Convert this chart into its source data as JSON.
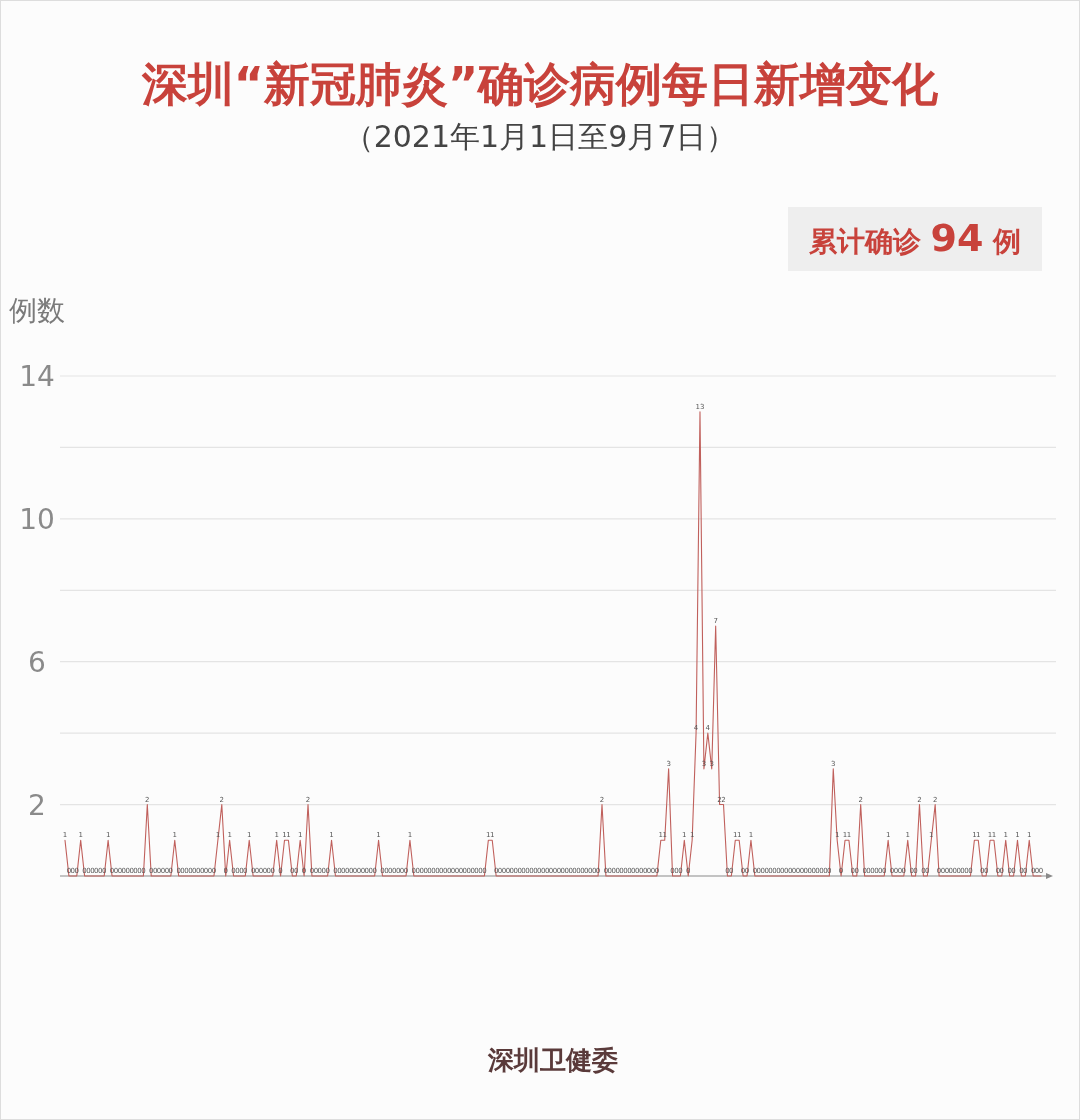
{
  "chart_data": {
    "type": "line",
    "title": "深圳“新冠肺炎”确诊病例每日新增变化",
    "subtitle": "（2021年1月1日至9月7日）",
    "ylabel": "例数",
    "annotations": [
      "累计确诊 **94** 例",
      "深圳卫健委"
    ],
    "color": "#c0605c",
    "ylim": [
      0,
      14
    ],
    "yticks": [
      2,
      {
        "value": 4,
        "label": null
      },
      6,
      {
        "value": 8,
        "label": null
      },
      10,
      {
        "value": 12,
        "label": null
      },
      14
    ],
    "grid": "y",
    "data_labels": true,
    "categories": [
      null,
      null,
      null,
      null,
      null,
      null,
      null,
      null,
      null,
      null,
      null,
      null,
      null,
      null,
      null,
      null,
      null,
      null,
      null,
      null,
      null,
      null,
      null,
      null,
      null,
      null,
      null,
      null,
      null,
      null,
      null,
      null,
      null,
      null,
      null,
      null,
      null,
      null,
      null,
      null,
      null,
      null,
      null,
      null,
      null,
      null,
      null,
      null,
      null,
      null,
      null,
      null,
      null,
      null,
      null,
      null,
      null,
      null,
      null,
      null,
      null,
      null,
      null,
      null,
      null,
      null,
      null,
      null,
      null,
      null,
      null,
      null,
      null,
      null,
      null,
      null,
      null,
      null,
      null,
      null,
      null,
      null,
      null,
      null,
      null,
      null,
      null,
      null,
      null,
      null,
      null,
      null,
      null,
      null,
      null,
      null,
      null,
      null,
      null,
      null,
      null,
      null,
      null,
      null,
      null,
      null,
      null,
      null,
      null,
      null,
      null,
      null,
      null,
      null,
      null,
      null,
      null,
      null,
      null,
      null,
      null,
      null,
      null,
      null,
      null,
      null,
      null,
      null,
      null,
      null,
      null,
      null,
      null,
      null,
      null,
      null,
      null,
      null,
      null,
      null,
      null,
      null,
      null,
      null,
      null,
      null,
      null,
      null,
      null,
      null,
      null,
      null,
      null,
      null,
      null,
      null,
      null,
      null,
      null,
      null,
      null,
      null,
      null,
      null,
      null,
      null,
      null,
      null,
      null,
      null,
      null,
      null,
      null,
      null,
      null,
      null,
      null,
      null,
      null,
      null,
      null,
      null,
      null,
      null,
      null,
      null,
      null,
      null,
      null,
      null,
      null,
      null,
      null,
      null,
      null,
      null,
      null,
      null,
      null,
      null,
      null,
      null,
      null,
      null,
      null,
      null,
      null,
      null,
      null,
      null,
      null,
      null,
      null,
      null,
      null,
      null,
      null,
      null,
      null,
      null,
      null,
      null,
      null,
      null,
      null,
      null,
      null,
      null,
      null,
      null,
      null,
      null,
      null,
      null,
      null,
      null,
      null,
      null,
      null,
      null,
      null,
      null,
      null,
      null,
      null,
      null,
      null,
      null,
      null,
      null
    ],
    "values": [
      1,
      0,
      0,
      0,
      1,
      0,
      0,
      0,
      0,
      0,
      0,
      1,
      0,
      0,
      0,
      0,
      0,
      0,
      0,
      0,
      0,
      2,
      0,
      0,
      0,
      0,
      0,
      0,
      1,
      0,
      0,
      0,
      0,
      0,
      0,
      0,
      0,
      0,
      0,
      1,
      2,
      0,
      1,
      0,
      0,
      0,
      0,
      1,
      0,
      0,
      0,
      0,
      0,
      0,
      1,
      0,
      1,
      1,
      0,
      0,
      1,
      0,
      2,
      0,
      0,
      0,
      0,
      0,
      1,
      0,
      0,
      0,
      0,
      0,
      0,
      0,
      0,
      0,
      0,
      0,
      1,
      0,
      0,
      0,
      0,
      0,
      0,
      0,
      1,
      0,
      0,
      0,
      0,
      0,
      0,
      0,
      0,
      0,
      0,
      0,
      0,
      0,
      0,
      0,
      0,
      0,
      0,
      0,
      1,
      1,
      0,
      0,
      0,
      0,
      0,
      0,
      0,
      0,
      0,
      0,
      0,
      0,
      0,
      0,
      0,
      0,
      0,
      0,
      0,
      0,
      0,
      0,
      0,
      0,
      0,
      0,
      0,
      2,
      0,
      0,
      0,
      0,
      0,
      0,
      0,
      0,
      0,
      0,
      0,
      0,
      0,
      0,
      1,
      1,
      3,
      0,
      0,
      0,
      1,
      0,
      1,
      4,
      13,
      3,
      4,
      3,
      7,
      2,
      2,
      0,
      0,
      1,
      1,
      0,
      0,
      1,
      0,
      0,
      0,
      0,
      0,
      0,
      0,
      0,
      0,
      0,
      0,
      0,
      0,
      0,
      0,
      0,
      0,
      0,
      0,
      0,
      3,
      1,
      0,
      1,
      1,
      0,
      0,
      2,
      0,
      0,
      0,
      0,
      0,
      0,
      1,
      0,
      0,
      0,
      0,
      1,
      0,
      0,
      2,
      0,
      0,
      1,
      2,
      0,
      0,
      0,
      0,
      0,
      0,
      0,
      0,
      0,
      1,
      1,
      0,
      0,
      1,
      1,
      0,
      0,
      1,
      0,
      0,
      1,
      0,
      0,
      1,
      0,
      0,
      0
    ]
  }
}
